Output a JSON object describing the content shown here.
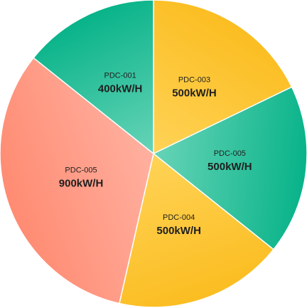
{
  "chart_data": {
    "type": "pie",
    "title": "",
    "legend": "none",
    "slices": [
      {
        "name": "PDC-003",
        "value": 500,
        "value_label": "500kW/H",
        "color_start": "#ffd357",
        "color_end": "#fbbd21"
      },
      {
        "name": "PDC-005",
        "value": 500,
        "value_label": "500kW/H",
        "color_start": "#67d4b7",
        "color_end": "#08b389"
      },
      {
        "name": "PDC-004",
        "value": 500,
        "value_label": "500kW/H",
        "color_start": "#ffd357",
        "color_end": "#fbbd21"
      },
      {
        "name": "PDC-005",
        "value": 900,
        "value_label": "900kW/H",
        "color_start": "#ffb0a0",
        "color_end": "#ff8b72"
      },
      {
        "name": "PDC-001",
        "value": 400,
        "value_label": "400kW/H",
        "color_start": "#67d4b7",
        "color_end": "#08b389"
      }
    ]
  }
}
